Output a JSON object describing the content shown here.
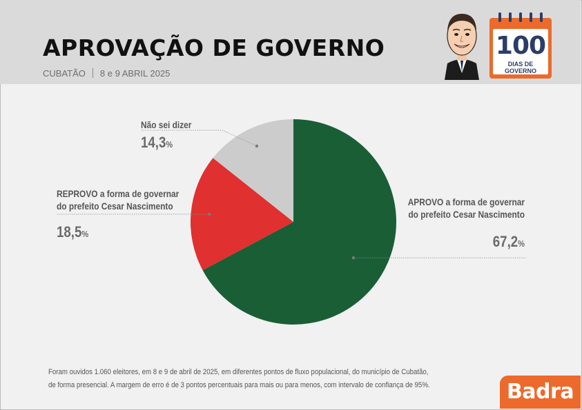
{
  "header": {
    "title": "APROVAÇÃO DE GOVERNO",
    "location": "CUBATÃO",
    "date": "8 e 9 ABRIL 2025"
  },
  "badge": {
    "number": "100",
    "label": "DIAS DE GOVERNO",
    "color": "#ec6a2b"
  },
  "chart_data": {
    "type": "pie",
    "title": "APROVAÇÃO DE GOVERNO",
    "series": [
      {
        "label_line1": "APROVO a forma de governar",
        "label_line2": "do prefeito Cesar Nascimento",
        "value": 67.2,
        "value_text": "67,2",
        "unit": "%",
        "color": "#1a5e36"
      },
      {
        "label_line1": "REPROVO a forma de governar",
        "label_line2": "do prefeito Cesar Nascimento",
        "value": 18.5,
        "value_text": "18,5",
        "unit": "%",
        "color": "#e03030"
      },
      {
        "label_line1": "Não sei dizer",
        "label_line2": "",
        "value": 14.3,
        "value_text": "14,3",
        "unit": "%",
        "color": "#cccccc"
      }
    ]
  },
  "footnote": {
    "line1": "Foram ouvidos 1.060 eleitores, em 8 e 9 de abril de 2025, em diferentes pontos de fluxo populacional, do município de Cubatão,",
    "line2": "de forma presencial. A margem de erro é de 3 pontos percentuais para mais ou para menos, com intervalo de confiança de 95%."
  },
  "brand": {
    "name": "Badra",
    "color": "#ec6a2b"
  }
}
